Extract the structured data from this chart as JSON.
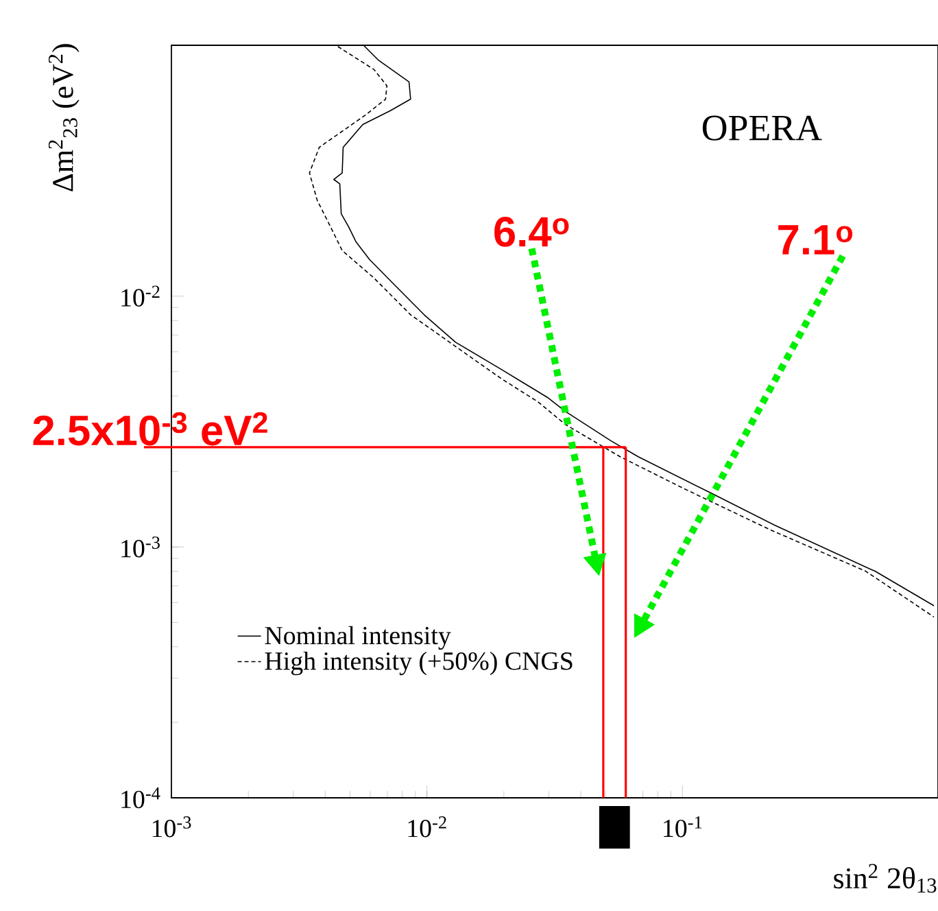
{
  "chart_data": {
    "type": "line",
    "xlabel": "sin$^{2}$ 2θ$_{13}$",
    "ylabel": "Δm$^{2}$$_{23}$ (eV$^{2}$)",
    "log": "xy",
    "marker": "none",
    "xlim": [
      0.001,
      1
    ],
    "ylim": [
      0.0001,
      0.1
    ],
    "xticks": [
      {
        "value": 0.001,
        "label": "10$^{-3}$"
      },
      {
        "value": 0.01,
        "label": "10$^{-2}$"
      },
      {
        "value": 0.1,
        "label": "10$^{-1}$"
      }
    ],
    "yticks": [
      {
        "value": 0.0001,
        "label": "10$^{-4}$"
      },
      {
        "value": 0.001,
        "label": "10$^{-3}$"
      },
      {
        "value": 0.01,
        "label": "10$^{-2}$"
      }
    ],
    "legend": "bottom left",
    "series": [
      {
        "name": "Nominal intensity",
        "color": "#000000",
        "line_style": "solid",
        "x": [
          0.00565,
          0.00647,
          0.00851,
          0.00863,
          0.00718,
          0.00561,
          0.0047,
          0.00466,
          0.00432,
          0.00456,
          0.00462,
          0.00495,
          0.00527,
          0.00596,
          0.00733,
          0.00975,
          0.01294,
          0.01963,
          0.0296,
          0.0347,
          0.0525,
          0.0671,
          0.1294,
          0.23,
          0.568,
          0.964
        ],
        "values": [
          0.1,
          0.0871,
          0.0715,
          0.061,
          0.0548,
          0.0483,
          0.0392,
          0.031,
          0.0292,
          0.028,
          0.0213,
          0.0188,
          0.0165,
          0.014,
          0.0113,
          0.00843,
          0.00655,
          0.00509,
          0.00395,
          0.00348,
          0.00265,
          0.00229,
          0.00164,
          0.00122,
          0.0008,
          0.000583
        ]
      },
      {
        "name": "High intensity (+50%) CNGS",
        "color": "#000000",
        "line_style": "dashed",
        "x": [
          0.00448,
          0.00621,
          0.00697,
          0.00689,
          0.00573,
          0.00379,
          0.00347,
          0.00372,
          0.00412,
          0.00466,
          0.00621,
          0.00863,
          0.013,
          0.0196,
          0.0272,
          0.0348,
          0.057,
          0.1012,
          0.221,
          0.522,
          0.964
        ],
        "values": [
          0.0989,
          0.08,
          0.069,
          0.061,
          0.0526,
          0.0392,
          0.031,
          0.0241,
          0.0196,
          0.0152,
          0.0118,
          0.00843,
          0.00628,
          0.00468,
          0.00379,
          0.00308,
          0.00229,
          0.00171,
          0.00117,
          0.0008,
          0.000526
        ]
      }
    ],
    "ref_lines": [
      {
        "axis": "y",
        "value": 0.0025,
        "label": "2.5x10$^{-3}$ eV$^{2}$",
        "color": "#ff0000"
      },
      {
        "axis": "x",
        "value": 0.049,
        "label": "6.4$^{o}$",
        "color": "#ff0000"
      },
      {
        "axis": "x",
        "value": 0.06,
        "label": "7.1$^{o}$",
        "color": "#ff0000"
      }
    ],
    "annotations": [
      "OPERA"
    ]
  }
}
